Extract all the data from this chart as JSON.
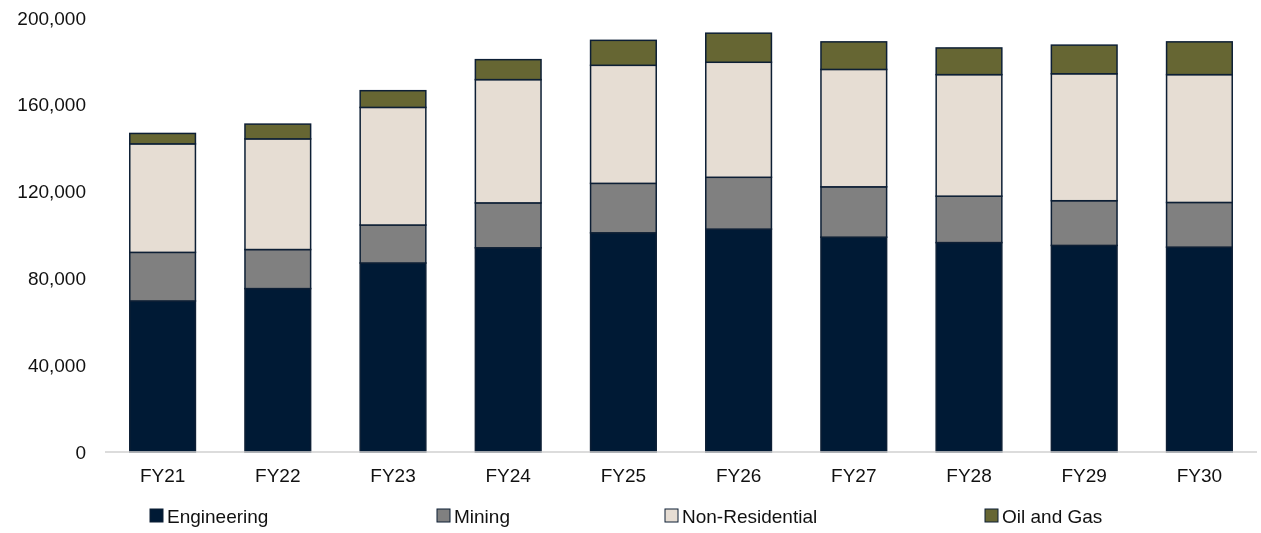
{
  "chart_data": {
    "type": "bar",
    "stacked": true,
    "categories": [
      "FY21",
      "FY22",
      "FY23",
      "FY24",
      "FY25",
      "FY26",
      "FY27",
      "FY28",
      "FY29",
      "FY30"
    ],
    "series": [
      {
        "name": "Engineering",
        "color": "#001a35",
        "values": [
          69600,
          75300,
          87100,
          94100,
          101000,
          102700,
          99000,
          96500,
          95200,
          94400
        ]
      },
      {
        "name": "Mining",
        "color": "#808080",
        "values": [
          22400,
          18000,
          17500,
          20700,
          22800,
          23900,
          23200,
          21400,
          20600,
          20600
        ]
      },
      {
        "name": "Non-Residential",
        "color": "#e6ddd3",
        "values": [
          50000,
          51000,
          54200,
          56800,
          54400,
          53000,
          54100,
          56000,
          58500,
          58900
        ]
      },
      {
        "name": "Oil and Gas",
        "color": "#666633",
        "values": [
          4800,
          6800,
          7700,
          9200,
          11500,
          13400,
          12700,
          12300,
          13200,
          15100
        ]
      }
    ],
    "ylim": [
      0,
      200000
    ],
    "yticks": [
      {
        "value": 0,
        "label": "0"
      },
      {
        "value": 40000,
        "label": "40,000"
      },
      {
        "value": 80000,
        "label": "80,000"
      },
      {
        "value": 120000,
        "label": "120,000"
      },
      {
        "value": 160000,
        "label": "160,000"
      },
      {
        "value": 200000,
        "label": "200,000"
      }
    ],
    "grid": false,
    "legend": "bottom"
  }
}
